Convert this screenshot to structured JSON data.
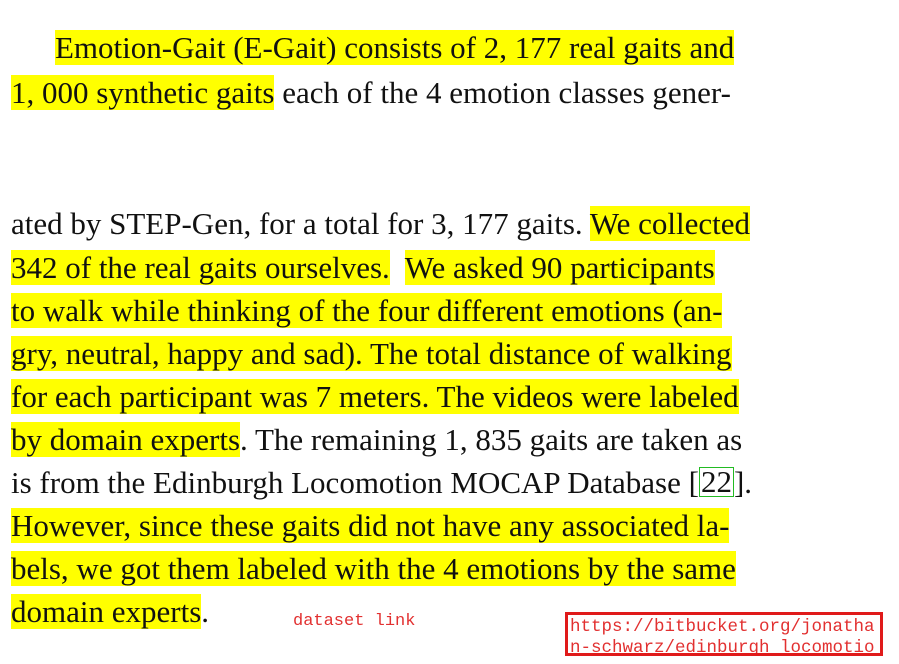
{
  "paragraph_top": {
    "line1": {
      "highlighted": "Emotion-Gait (E-Gait) consists of 2, 177 real gaits and"
    },
    "line2": {
      "highlighted": "1, 000 synthetic gaits",
      "plain": " each of the 4 emotion classes gener-"
    }
  },
  "paragraph_bottom": {
    "line1": {
      "plain": "ated by STEP-Gen, for a total for 3, 177 gaits. ",
      "highlighted": "We collected"
    },
    "line2": {
      "highlighted_a": "342 of the real gaits ourselves.",
      "gap": "  ",
      "highlighted_b": "We asked 90 participants"
    },
    "line3": {
      "highlighted": "to walk while thinking of the four different emotions (an-"
    },
    "line4": {
      "highlighted": "gry, neutral, happy and sad). The total distance of walking"
    },
    "line5": {
      "highlighted": "for each participant was 7 meters. The videos were labeled"
    },
    "line6": {
      "highlighted": "by domain experts",
      "plain": ". The remaining 1, 835 gaits are taken as"
    },
    "line7": {
      "plain_a": "is from the Edinburgh Locomotion MOCAP Database [",
      "citation": "22",
      "plain_b": "]."
    },
    "line8": {
      "highlighted": "However, since these gaits did not have any associated la-"
    },
    "line9": {
      "highlighted": "bels, we got them labeled with the 4 emotions by the same"
    },
    "line10": {
      "highlighted": "domain experts",
      "plain": "."
    }
  },
  "annotation": {
    "label": "dataset link",
    "url_text": "https://bitbucket.org/jonathan-schwarz/edinburgh_locomotio"
  },
  "colors": {
    "highlight": "#ffff00",
    "annotation_red": "#e01a1a",
    "citation_box_green": "#22bb22"
  }
}
